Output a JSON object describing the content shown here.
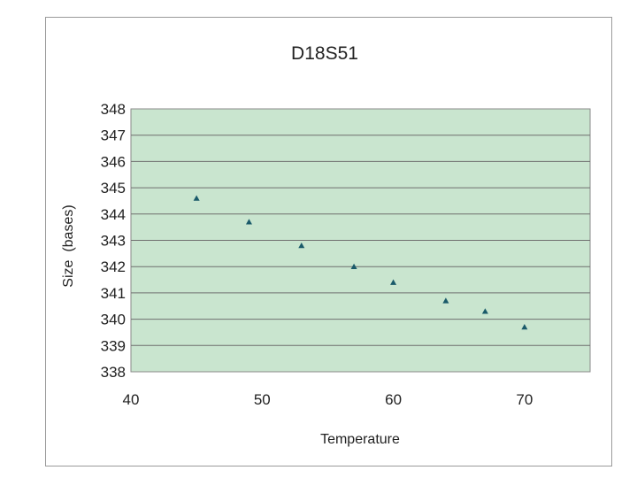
{
  "chart_data": {
    "type": "scatter",
    "title": "D18S51",
    "xlabel": "Temperature",
    "ylabel": "Size  (bases)",
    "xlim": [
      40,
      75
    ],
    "ylim": [
      338,
      348
    ],
    "xticks": [
      40,
      50,
      60,
      70
    ],
    "yticks": [
      338,
      339,
      340,
      341,
      342,
      343,
      344,
      345,
      346,
      347,
      348
    ],
    "grid": "horizontal",
    "legend": "none",
    "plot_background": "#c9e5cf",
    "grid_color": "#6f6f6f",
    "marker": "triangle",
    "marker_color": "#1a5a6a",
    "x": [
      45,
      49,
      53,
      57,
      60,
      64,
      67,
      70
    ],
    "y": [
      344.6,
      343.7,
      342.8,
      342.0,
      341.4,
      340.7,
      340.3,
      339.7
    ]
  }
}
